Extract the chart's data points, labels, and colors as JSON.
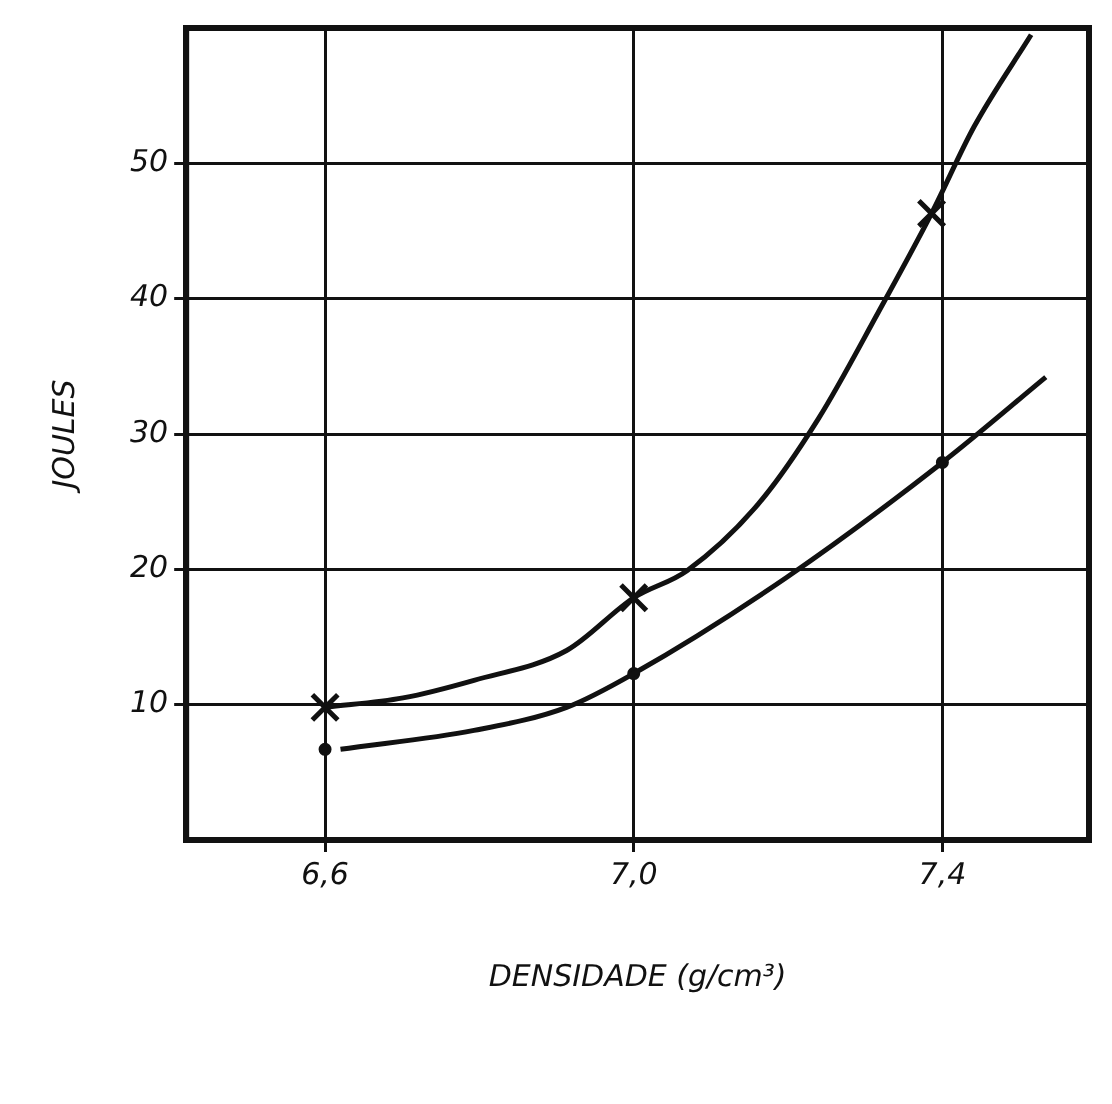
{
  "chart_data": {
    "type": "line",
    "xlabel": "DENSIDADE (g/cm³)",
    "ylabel": "JOULES",
    "xlim": [
      6.42,
      7.59
    ],
    "xticks": [
      {
        "value": 6.6,
        "label": "6,6"
      },
      {
        "value": 7.0,
        "label": "7,0"
      },
      {
        "value": 7.4,
        "label": "7,4"
      }
    ],
    "ylim": [
      0,
      60
    ],
    "yticks": [
      10,
      20,
      30,
      40,
      50
    ],
    "grid": true,
    "legend": false,
    "series": [
      {
        "type": "line",
        "marker": "none",
        "color": "#111111",
        "x": [
          6.6,
          6.701,
          6.793,
          6.913,
          7.0,
          7.069,
          7.161,
          7.239,
          7.317,
          7.386,
          7.441,
          7.515
        ],
        "values": [
          9.8,
          10.5,
          11.8,
          14.0,
          17.9,
          19.9,
          24.8,
          31.1,
          39.0,
          46.3,
          52.7,
          59.5
        ]
      },
      {
        "type": "scatter",
        "marker": "cross",
        "color": "#111111",
        "x": [
          6.6,
          7.0,
          7.386
        ],
        "values": [
          9.8,
          17.9,
          46.3
        ]
      },
      {
        "type": "line",
        "marker": "none",
        "color": "#111111",
        "x": [
          6.62,
          6.793,
          6.913,
          7.0,
          7.198,
          7.4,
          7.534
        ],
        "values": [
          6.7,
          8.1,
          9.8,
          12.3,
          19.4,
          27.9,
          34.2
        ]
      },
      {
        "type": "scatter",
        "marker": "circle",
        "color": "#111111",
        "x": [
          6.6,
          7.0,
          7.4
        ],
        "values": [
          6.7,
          12.3,
          27.9
        ]
      }
    ]
  }
}
